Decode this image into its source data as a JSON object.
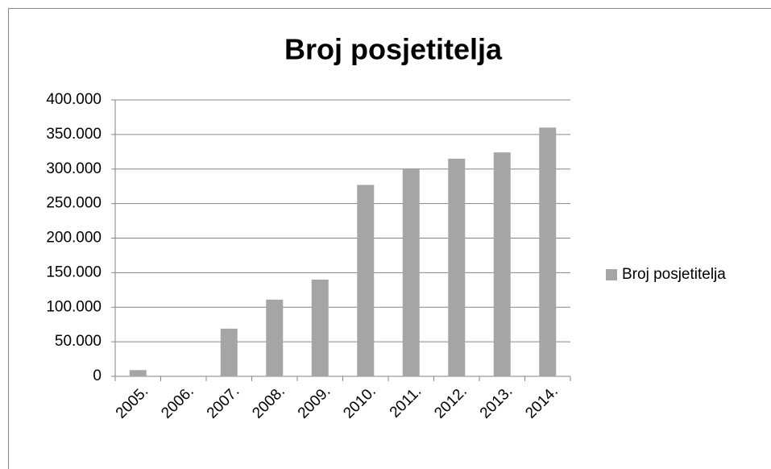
{
  "chart_data": {
    "type": "bar",
    "title": "Broj posjetitelja",
    "categories": [
      "2005.",
      "2006.",
      "2007.",
      "2008.",
      "2009.",
      "2010.",
      "2011.",
      "2012.",
      "2013.",
      "2014."
    ],
    "series": [
      {
        "name": "Broj posjetitelja",
        "color": "#a5a5a5",
        "values": [
          9000,
          0,
          69000,
          111000,
          140000,
          277000,
          301000,
          315000,
          324000,
          360000
        ]
      }
    ],
    "ylim": [
      0,
      400000
    ],
    "yticks": [
      0,
      {
        "value": 50000,
        "label": "50.000"
      },
      {
        "value": 100000,
        "label": "100.000"
      },
      {
        "value": 150000,
        "label": "150.000"
      },
      {
        "value": 200000,
        "label": "200.000"
      },
      {
        "value": 250000,
        "label": "250.000"
      },
      {
        "value": 300000,
        "label": "300.000"
      },
      {
        "value": 350000,
        "label": "350.000"
      },
      {
        "value": 400000,
        "label": "400.000"
      }
    ],
    "grid": true,
    "legend": "right"
  }
}
